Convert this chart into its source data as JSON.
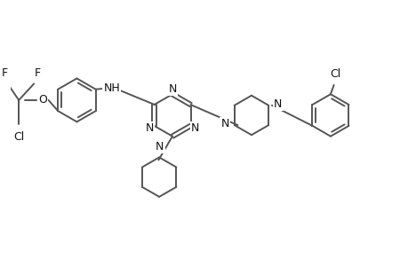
{
  "bg_color": "#ffffff",
  "line_color": "#555555",
  "line_width": 1.4,
  "font_size": 9,
  "xlim": [
    -1.8,
    4.2
  ],
  "ylim": [
    -1.2,
    1.5
  ],
  "figsize": [
    4.6,
    3.0
  ],
  "dpi": 100
}
